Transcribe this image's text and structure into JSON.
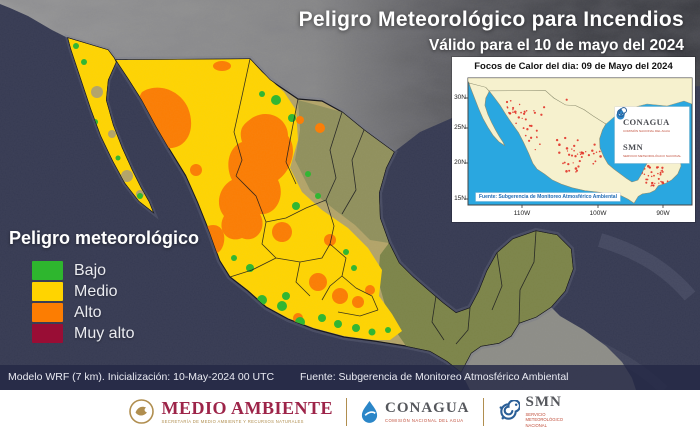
{
  "header": {
    "title": "Peligro Meteorológico para Incendios",
    "subtitle": "Válido para el 10 de mayo del 2024"
  },
  "legend": {
    "title": "Peligro meteorológico",
    "items": [
      {
        "label": "Bajo",
        "color": "#2eb62e"
      },
      {
        "label": "Medio",
        "color": "#ffd400"
      },
      {
        "label": "Alto",
        "color": "#fc7d02"
      },
      {
        "label": "Muy alto",
        "color": "#990d35"
      }
    ]
  },
  "inset": {
    "title": "Focos de Calor del dia: 09 de Mayo del 2024",
    "source": "Fuente: Subgerencia de Monitoreo Atmosférico Ambiental",
    "lat_ticks": [
      "30N",
      "25N",
      "20N",
      "15N"
    ],
    "lon_ticks": [
      "110W",
      "100W",
      "90W"
    ],
    "logos": [
      {
        "name": "CONAGUA"
      },
      {
        "name": "SMN"
      }
    ],
    "ocean_color": "#2aa7e0",
    "land_color": "#f6f1ce",
    "hotspot_color": "#e0281e"
  },
  "status": {
    "model": "Modelo WRF (7 km). Inicialización: 10-May-2024  00 UTC",
    "source": "Fuente: Subgerencia de Monitoreo Atmosférico Ambiental"
  },
  "footer": {
    "agencies": [
      {
        "name": "MEDIO AMBIENTE",
        "tagline": "SECRETARÍA DE MEDIO AMBIENTE Y RECURSOS NATURALES"
      },
      {
        "name": "CONAGUA",
        "tagline": "COMISIÓN NACIONAL DEL AGUA"
      },
      {
        "name": "SMN",
        "tagline": "SERVICIO METEOROLÓGICO NACIONAL"
      }
    ]
  },
  "map_colors": {
    "ocean": "#363a52",
    "base_land": "#b3a468",
    "northeast_land": "#90905c",
    "southeast_land": "#7c8448",
    "foreign_terrain": "#8d8d87"
  }
}
